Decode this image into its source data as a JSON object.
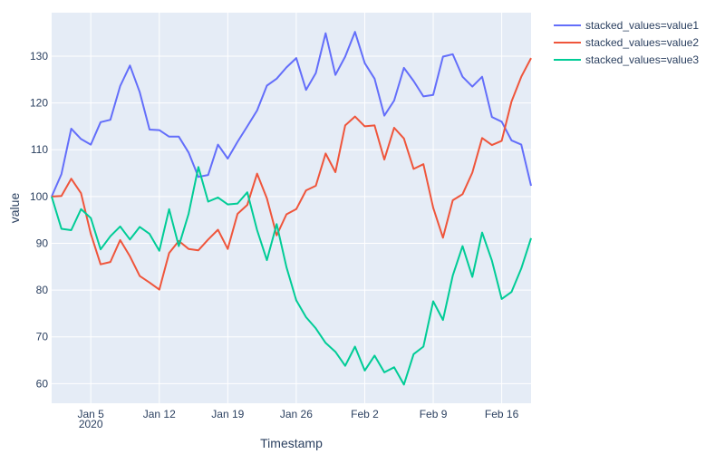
{
  "chart_data": {
    "type": "line",
    "xlabel": "Timestamp",
    "ylabel": "value",
    "x_start": "2020-01-01",
    "x_end": "2020-02-19",
    "x_ticks": [
      {
        "date": "2020-01-05",
        "label": "Jan 5",
        "sublabel": "2020"
      },
      {
        "date": "2020-01-12",
        "label": "Jan 12",
        "sublabel": ""
      },
      {
        "date": "2020-01-19",
        "label": "Jan 19",
        "sublabel": ""
      },
      {
        "date": "2020-01-26",
        "label": "Jan 26",
        "sublabel": ""
      },
      {
        "date": "2020-02-02",
        "label": "Feb 2",
        "sublabel": ""
      },
      {
        "date": "2020-02-09",
        "label": "Feb 9",
        "sublabel": ""
      },
      {
        "date": "2020-02-16",
        "label": "Feb 16",
        "sublabel": ""
      }
    ],
    "ylim": [
      55.8,
      139.3
    ],
    "y_ticks": [
      60,
      70,
      80,
      90,
      100,
      110,
      120,
      130
    ],
    "grid": true,
    "legend_position": "top-right",
    "x": [
      "2020-01-01",
      "2020-01-02",
      "2020-01-03",
      "2020-01-04",
      "2020-01-05",
      "2020-01-06",
      "2020-01-07",
      "2020-01-08",
      "2020-01-09",
      "2020-01-10",
      "2020-01-11",
      "2020-01-12",
      "2020-01-13",
      "2020-01-14",
      "2020-01-15",
      "2020-01-16",
      "2020-01-17",
      "2020-01-18",
      "2020-01-19",
      "2020-01-20",
      "2020-01-21",
      "2020-01-22",
      "2020-01-23",
      "2020-01-24",
      "2020-01-25",
      "2020-01-26",
      "2020-01-27",
      "2020-01-28",
      "2020-01-29",
      "2020-01-30",
      "2020-01-31",
      "2020-02-01",
      "2020-02-02",
      "2020-02-03",
      "2020-02-04",
      "2020-02-05",
      "2020-02-06",
      "2020-02-07",
      "2020-02-08",
      "2020-02-09",
      "2020-02-10",
      "2020-02-11",
      "2020-02-12",
      "2020-02-13",
      "2020-02-14",
      "2020-02-15",
      "2020-02-16",
      "2020-02-17",
      "2020-02-18",
      "2020-02-19"
    ],
    "series": [
      {
        "name": "stacked_values=value1",
        "color": "#636efa",
        "values": [
          100.0,
          104.8,
          114.5,
          112.3,
          111.1,
          115.9,
          116.4,
          123.6,
          128.0,
          122.3,
          114.3,
          114.2,
          112.8,
          112.8,
          109.4,
          104.2,
          104.6,
          111.1,
          108.1,
          111.7,
          115.0,
          118.4,
          123.7,
          125.2,
          127.6,
          129.6,
          122.8,
          126.4,
          134.9,
          126.0,
          129.9,
          135.2,
          128.5,
          125.2,
          117.3,
          120.5,
          127.5,
          124.7,
          121.4,
          121.7,
          129.9,
          130.4,
          125.6,
          123.5,
          125.6,
          117.0,
          116.0,
          112.0,
          111.1,
          102.3
        ]
      },
      {
        "name": "stacked_values=value2",
        "color": "#ef553b",
        "values": [
          100.0,
          100.1,
          103.8,
          100.7,
          92.0,
          85.5,
          86.0,
          90.7,
          87.2,
          83.0,
          81.6,
          80.1,
          87.9,
          90.5,
          88.8,
          88.5,
          90.8,
          92.9,
          88.8,
          96.3,
          98.2,
          104.9,
          99.6,
          91.7,
          96.2,
          97.3,
          101.3,
          102.3,
          109.2,
          105.2,
          115.2,
          117.1,
          115.0,
          115.2,
          107.9,
          114.7,
          112.4,
          105.9,
          106.9,
          97.6,
          91.2,
          99.2,
          100.5,
          105.1,
          112.5,
          111.0,
          111.9,
          120.3,
          125.6,
          129.6
        ]
      },
      {
        "name": "stacked_values=value3",
        "color": "#00cc96",
        "values": [
          100.0,
          93.1,
          92.8,
          97.3,
          95.4,
          88.7,
          91.5,
          93.6,
          90.8,
          93.5,
          92.0,
          88.4,
          97.3,
          89.4,
          96.3,
          106.3,
          98.9,
          99.8,
          98.3,
          98.5,
          100.9,
          92.8,
          86.4,
          94.1,
          84.9,
          77.8,
          74.2,
          71.8,
          68.7,
          66.8,
          63.8,
          67.9,
          62.8,
          66.0,
          62.4,
          63.5,
          59.8,
          66.3,
          67.9,
          77.6,
          73.6,
          83.1,
          89.4,
          82.8,
          92.3,
          86.3,
          78.1,
          79.6,
          84.6,
          91.1
        ]
      }
    ]
  }
}
